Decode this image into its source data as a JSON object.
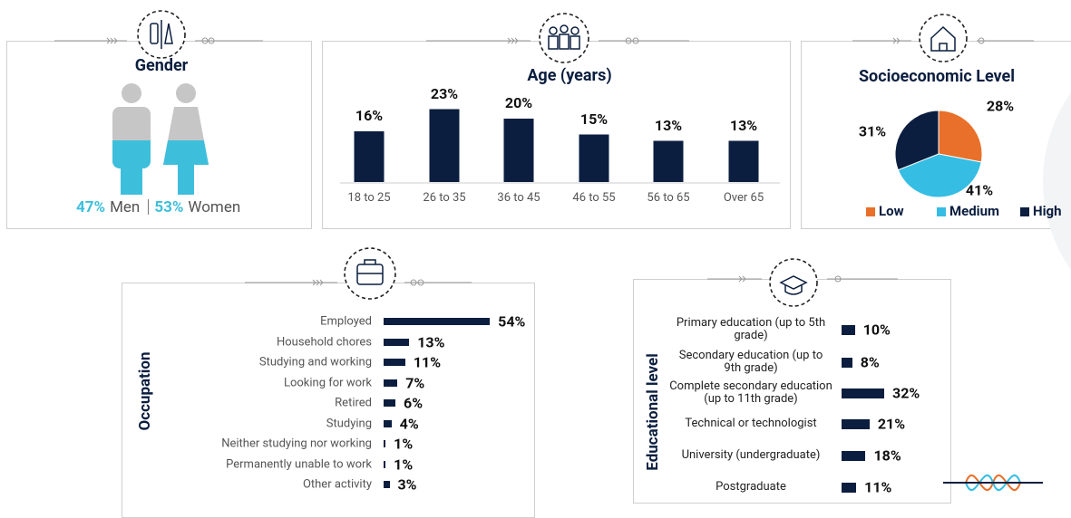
{
  "chart_data": [
    {
      "type": "pictogram",
      "title": "Gender",
      "categories": [
        "Men",
        "Women"
      ],
      "values": [
        47,
        53
      ],
      "value_labels": [
        "47%",
        "53%"
      ],
      "colors": [
        "#c6c6c6",
        "#3dbfdc"
      ]
    },
    {
      "type": "bar",
      "title": "Age (years)",
      "categories": [
        "18 to 25",
        "26 to 35",
        "36 to 45",
        "46 to 55",
        "56 to 65",
        "Over 65"
      ],
      "values": [
        16,
        23,
        20,
        15,
        13,
        13
      ],
      "value_labels": [
        "16%",
        "23%",
        "20%",
        "15%",
        "13%",
        "13%"
      ],
      "color": "#0b1e3f"
    },
    {
      "type": "pie",
      "title": "Socioeconomic Level",
      "categories": [
        "Low",
        "Medium",
        "High"
      ],
      "values": [
        28,
        41,
        31
      ],
      "value_labels": [
        "28%",
        "41%",
        "31%"
      ],
      "colors": [
        "#e8702a",
        "#35bde3",
        "#0b1e3f"
      ],
      "legend": "bottom"
    },
    {
      "type": "hbar",
      "y_label": "Occupation",
      "categories": [
        "Employed",
        "Household chores",
        "Studying and working",
        "Looking for work",
        "Retired",
        "Studying",
        "Neither studying nor working",
        "Permanently unable to work",
        "Other activity"
      ],
      "values": [
        54,
        13,
        11,
        7,
        6,
        4,
        1,
        1,
        3
      ],
      "value_labels": [
        "54%",
        "13%",
        "11%",
        "7%",
        "6%",
        "4%",
        "1%",
        "1%",
        "3%"
      ],
      "color": "#0b1e3f"
    },
    {
      "type": "hbar",
      "y_label": "Educational level",
      "categories": [
        "Primary education (up to 5th grade)",
        "Secondary education (up to 9th grade)",
        "Complete secondary education (up to 11th grade)",
        "Technical or technologist",
        "University (undergraduate)",
        "Postgraduate"
      ],
      "values": [
        10,
        8,
        32,
        21,
        18,
        11
      ],
      "value_labels": [
        "10%",
        "8%",
        "32%",
        "21%",
        "18%",
        "11%"
      ],
      "color": "#0b1e3f"
    }
  ]
}
